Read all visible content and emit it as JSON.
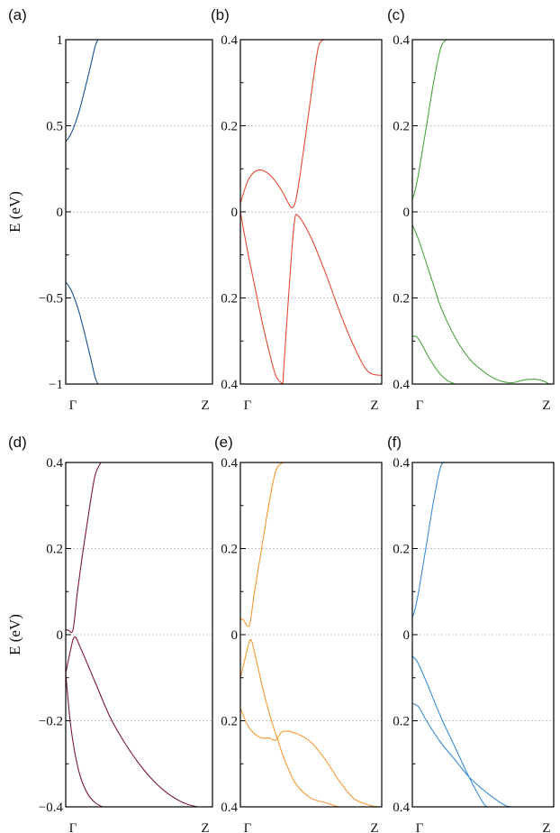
{
  "chart_data": [
    {
      "panel": "(a)",
      "type": "line",
      "color": "#1a4f8b",
      "ylabel": "E (eV)",
      "ylim": [
        -1,
        1
      ],
      "yticks": [
        "1",
        "0.5",
        "0",
        "−0.5",
        "−1"
      ],
      "yticks_values": [
        1,
        0.5,
        0,
        -0.5,
        -1
      ],
      "xticks": [
        "Γ",
        "Z"
      ],
      "xlim": [
        0,
        1
      ],
      "grid_y": [
        0.5,
        0,
        -0.5
      ],
      "series": [
        {
          "x": [
            0,
            0.02,
            0.05,
            0.09,
            0.13,
            0.17,
            0.2,
            0.22
          ],
          "y": [
            0.41,
            0.43,
            0.48,
            0.58,
            0.71,
            0.85,
            0.96,
            1.0
          ]
        },
        {
          "x": [
            0,
            0.02,
            0.05,
            0.09,
            0.13,
            0.17,
            0.2,
            0.22
          ],
          "y": [
            -0.41,
            -0.43,
            -0.48,
            -0.58,
            -0.71,
            -0.85,
            -0.96,
            -1.0
          ]
        }
      ]
    },
    {
      "panel": "(b)",
      "type": "line",
      "color": "#e24a33",
      "ylabel": "",
      "ylim": [
        -0.4,
        0.4
      ],
      "yticks": [
        "0.4",
        "0.2",
        "0",
        "0.2",
        "0.4"
      ],
      "yticks_values": [
        0.4,
        0.2,
        0,
        -0.2,
        -0.4
      ],
      "xticks": [
        "Γ",
        "Z"
      ],
      "xlim": [
        0,
        1
      ],
      "grid_y": [
        0.2,
        0,
        -0.2
      ],
      "series": [
        {
          "x": [
            0,
            0.05,
            0.1,
            0.15,
            0.2,
            0.25,
            0.3,
            0.34,
            0.37,
            0.4,
            0.45,
            0.5,
            0.55,
            0.59
          ],
          "y": [
            0.02,
            0.07,
            0.093,
            0.097,
            0.088,
            0.07,
            0.045,
            0.02,
            0.01,
            0.04,
            0.15,
            0.27,
            0.38,
            0.4
          ]
        },
        {
          "x": [
            0,
            0.05,
            0.1,
            0.15,
            0.2,
            0.25,
            0.3
          ],
          "y": [
            0.0,
            -0.09,
            -0.17,
            -0.25,
            -0.32,
            -0.38,
            -0.4
          ]
        },
        {
          "x": [
            0.3,
            0.34,
            0.38,
            0.41,
            0.5,
            0.6,
            0.7,
            0.8,
            0.9,
            1.0
          ],
          "y": [
            -0.4,
            -0.2,
            -0.03,
            -0.01,
            -0.06,
            -0.14,
            -0.23,
            -0.31,
            -0.37,
            -0.38
          ]
        }
      ]
    },
    {
      "panel": "(c)",
      "type": "line",
      "color": "#4aa33d",
      "ylabel": "",
      "ylim": [
        -0.4,
        0.4
      ],
      "yticks": [
        "0.4",
        "0.2",
        "0",
        "0.2",
        "0.4"
      ],
      "yticks_values": [
        0.4,
        0.2,
        0,
        -0.2,
        -0.4
      ],
      "xticks": [
        "Γ",
        "Z"
      ],
      "xlim": [
        0,
        1
      ],
      "grid_y": [
        0.2,
        0,
        -0.2
      ],
      "series": [
        {
          "x": [
            0,
            0.02,
            0.05,
            0.1,
            0.15,
            0.2,
            0.24
          ],
          "y": [
            0.03,
            0.05,
            0.1,
            0.2,
            0.3,
            0.38,
            0.4
          ]
        },
        {
          "x": [
            0,
            0.02,
            0.05,
            0.1,
            0.15,
            0.2,
            0.3,
            0.4,
            0.5,
            0.6,
            0.7,
            0.8,
            0.9,
            0.97
          ],
          "y": [
            -0.03,
            -0.045,
            -0.07,
            -0.12,
            -0.17,
            -0.22,
            -0.29,
            -0.34,
            -0.37,
            -0.39,
            -0.397,
            -0.39,
            -0.39,
            -0.4
          ]
        },
        {
          "x": [
            0,
            0.03,
            0.07,
            0.12,
            0.18,
            0.24,
            0.3
          ],
          "y": [
            -0.29,
            -0.29,
            -0.31,
            -0.34,
            -0.37,
            -0.39,
            -0.4
          ]
        }
      ]
    },
    {
      "panel": "(d)",
      "type": "line",
      "color": "#7a1838",
      "ylabel": "E (eV)",
      "ylim": [
        -0.4,
        0.4
      ],
      "yticks": [
        "0.4",
        "0.2",
        "0",
        "−0.2",
        "−0.4"
      ],
      "yticks_values": [
        0.4,
        0.2,
        0,
        -0.2,
        -0.4
      ],
      "xticks": [
        "Γ",
        "Z"
      ],
      "xlim": [
        0,
        1
      ],
      "grid_y": [
        0.2,
        0,
        -0.2
      ],
      "series": [
        {
          "x": [
            0,
            0.02,
            0.05,
            0.08,
            0.12,
            0.16,
            0.2,
            0.24
          ],
          "y": [
            0.012,
            0.01,
            0.012,
            0.1,
            0.2,
            0.29,
            0.37,
            0.4
          ]
        },
        {
          "x": [
            0,
            0.03,
            0.06,
            0.1,
            0.2,
            0.3,
            0.4,
            0.5,
            0.6,
            0.7,
            0.8,
            0.9,
            0.98
          ],
          "y": [
            -0.09,
            -0.04,
            -0.005,
            -0.03,
            -0.11,
            -0.19,
            -0.25,
            -0.3,
            -0.34,
            -0.37,
            -0.39,
            -0.4,
            -0.4
          ]
        },
        {
          "x": [
            0,
            0.03,
            0.06,
            0.1,
            0.15,
            0.2,
            0.25
          ],
          "y": [
            -0.09,
            -0.2,
            -0.27,
            -0.33,
            -0.37,
            -0.39,
            -0.4
          ]
        }
      ]
    },
    {
      "panel": "(e)",
      "type": "line",
      "color": "#f29a34",
      "ylabel": "",
      "ylim": [
        -0.4,
        0.4
      ],
      "yticks": [
        "0.4",
        "0.2",
        "0",
        "0.2",
        "0.4"
      ],
      "yticks_values": [
        0.4,
        0.2,
        0,
        -0.2,
        -0.4
      ],
      "xticks": [
        "Γ",
        "Z"
      ],
      "xlim": [
        0,
        1
      ],
      "grid_y": [
        0.2,
        0,
        -0.2
      ],
      "series": [
        {
          "x": [
            0,
            0.02,
            0.05,
            0.07,
            0.1,
            0.15,
            0.2,
            0.25,
            0.3
          ],
          "y": [
            0.035,
            0.035,
            0.02,
            0.03,
            0.1,
            0.2,
            0.3,
            0.38,
            0.4
          ]
        },
        {
          "x": [
            0,
            0.03,
            0.06,
            0.08,
            0.12,
            0.17,
            0.22,
            0.27,
            0.3,
            0.35,
            0.4,
            0.5,
            0.6,
            0.7,
            0.8,
            0.9
          ],
          "y": [
            -0.1,
            -0.06,
            -0.02,
            -0.015,
            -0.07,
            -0.14,
            -0.2,
            -0.25,
            -0.28,
            -0.32,
            -0.35,
            -0.38,
            -0.39,
            -0.4,
            -0.4,
            -0.4
          ]
        },
        {
          "x": [
            0,
            0.05,
            0.1,
            0.15,
            0.2,
            0.25,
            0.3,
            0.4,
            0.5,
            0.6,
            0.7,
            0.8,
            0.9,
            0.98
          ],
          "y": [
            -0.17,
            -0.21,
            -0.23,
            -0.24,
            -0.24,
            -0.245,
            -0.225,
            -0.23,
            -0.25,
            -0.29,
            -0.34,
            -0.38,
            -0.395,
            -0.4
          ]
        }
      ]
    },
    {
      "panel": "(f)",
      "type": "line",
      "color": "#3b8dd0",
      "ylabel": "",
      "ylim": [
        -0.4,
        0.4
      ],
      "yticks": [
        "0.4",
        "0.2",
        "0",
        "0.2",
        "0.4"
      ],
      "yticks_values": [
        0.4,
        0.2,
        0,
        -0.2,
        -0.4
      ],
      "xticks": [
        "Γ",
        "Z"
      ],
      "xlim": [
        0,
        1
      ],
      "grid_y": [
        0.2,
        0,
        -0.2
      ],
      "series": [
        {
          "x": [
            0,
            0.02,
            0.05,
            0.1,
            0.15,
            0.2,
            0.24
          ],
          "y": [
            0.04,
            0.06,
            0.11,
            0.21,
            0.31,
            0.39,
            0.4
          ]
        },
        {
          "x": [
            0,
            0.03,
            0.06,
            0.1,
            0.2,
            0.3,
            0.4,
            0.5,
            0.53
          ],
          "y": [
            -0.05,
            -0.06,
            -0.08,
            -0.11,
            -0.19,
            -0.26,
            -0.33,
            -0.39,
            -0.4
          ]
        },
        {
          "x": [
            0,
            0.02,
            0.05,
            0.1,
            0.2,
            0.3,
            0.4,
            0.5,
            0.6,
            0.66,
            0.7
          ],
          "y": [
            -0.16,
            -0.162,
            -0.17,
            -0.2,
            -0.25,
            -0.29,
            -0.33,
            -0.36,
            -0.385,
            -0.397,
            -0.4
          ]
        }
      ]
    }
  ]
}
